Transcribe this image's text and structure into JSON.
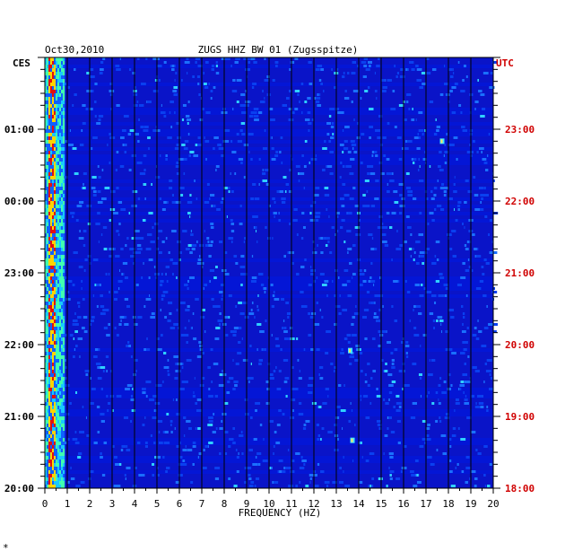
{
  "chart_data": {
    "type": "heatmap",
    "title": "ZUGS HHZ BW 01 (Zugsspitze)",
    "date": "Oct30,2010",
    "xlabel": "FREQUENCY (HZ)",
    "x_ticks": [
      "0",
      "1",
      "2",
      "3",
      "4",
      "5",
      "6",
      "7",
      "8",
      "9",
      "10",
      "11",
      "12",
      "13",
      "14",
      "15",
      "16",
      "17",
      "18",
      "19",
      "20"
    ],
    "xlim": [
      0,
      20
    ],
    "left_axis": {
      "label": "CES",
      "ticks": [
        "01:00",
        "00:00",
        "23:00",
        "22:00",
        "21:00",
        "20:00"
      ]
    },
    "right_axis": {
      "label": "UTC",
      "ticks": [
        "23:00",
        "22:00",
        "21:00",
        "20:00",
        "19:00",
        "18:00"
      ]
    },
    "grid": true,
    "colors": {
      "background": "#0a14c8",
      "low": "#0000a0",
      "mid": "#2aa0ff",
      "high": "#e01010",
      "utc_label": "#d00000",
      "grid": "#000000"
    },
    "description_features": {
      "low_frequency_band_hz": [
        0.0,
        0.8
      ],
      "bright_spots": [
        {
          "freq_hz": 13.6,
          "utc": "19:55"
        },
        {
          "freq_hz": 13.7,
          "utc": "18:40"
        },
        {
          "freq_hz": 17.7,
          "utc": "22:50"
        }
      ]
    }
  },
  "footer_mark": "*"
}
